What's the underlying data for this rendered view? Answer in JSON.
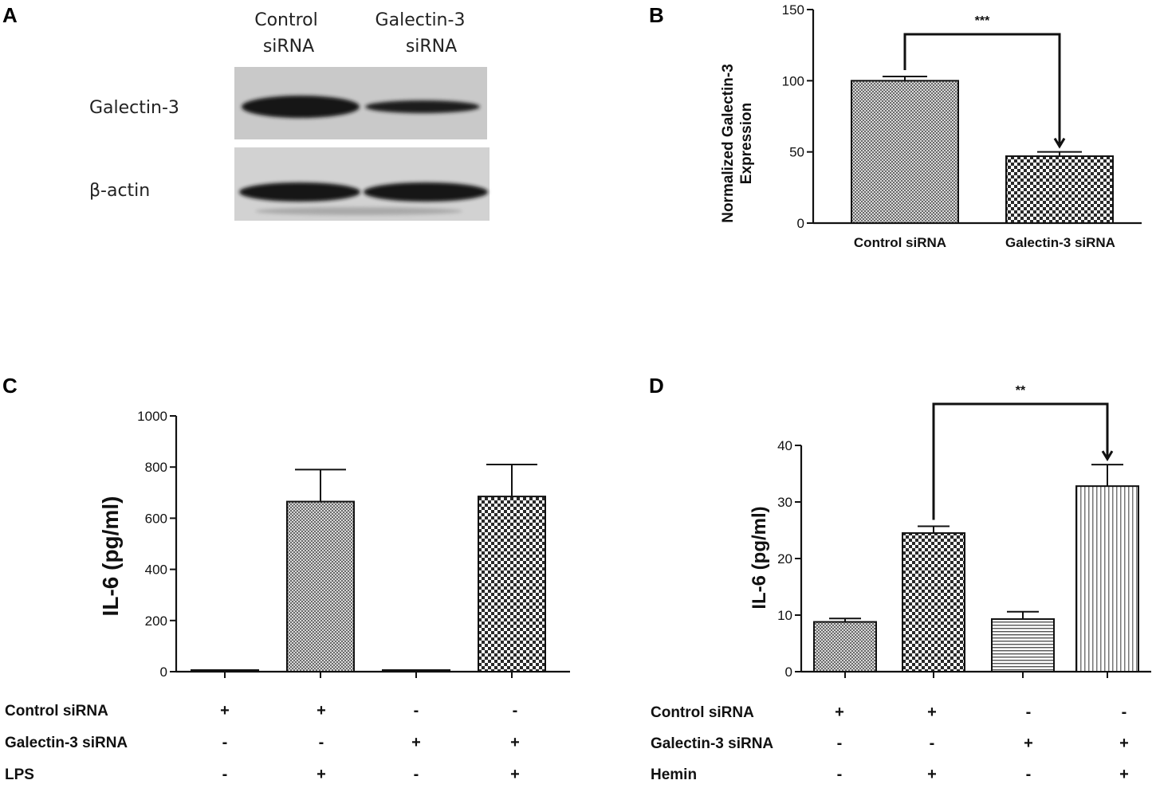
{
  "panels": {
    "a": "A",
    "b": "B",
    "c": "C",
    "d": "D"
  },
  "blot": {
    "lane_labels": [
      [
        "Control",
        "siRNA"
      ],
      [
        "Galectin-3",
        "siRNA"
      ]
    ],
    "row_labels": [
      "Galectin-3",
      "β-actin"
    ]
  },
  "chart_data": [
    {
      "id": "B",
      "type": "bar",
      "categories": [
        "Control siRNA",
        "Galectin-3 siRNA"
      ],
      "values": [
        100,
        47
      ],
      "errors": [
        3,
        3
      ],
      "ylabel": [
        "Normalized Galectin-3",
        "Expression"
      ],
      "ylim": [
        0,
        150
      ],
      "yticks": [
        0,
        50,
        100,
        150
      ],
      "significance": [
        {
          "from": 0,
          "to": 1,
          "label": "***"
        }
      ]
    },
    {
      "id": "C",
      "type": "bar",
      "categories": [
        "1",
        "2",
        "3",
        "4"
      ],
      "values": [
        5,
        665,
        5,
        685
      ],
      "errors": [
        0,
        125,
        0,
        125
      ],
      "ylabel": "IL-6 (pg/ml)",
      "ylim": [
        0,
        1000
      ],
      "yticks": [
        0,
        200,
        400,
        600,
        800,
        1000
      ],
      "conditions": [
        {
          "label": "Control siRNA",
          "signs": [
            "+",
            "+",
            "-",
            "-"
          ]
        },
        {
          "label": "Galectin-3 siRNA",
          "signs": [
            "-",
            "-",
            "+",
            "+"
          ]
        },
        {
          "label": "LPS",
          "signs": [
            "-",
            "+",
            "-",
            "+"
          ]
        }
      ]
    },
    {
      "id": "D",
      "type": "bar",
      "categories": [
        "1",
        "2",
        "3",
        "4"
      ],
      "values": [
        8.8,
        24.5,
        9.3,
        32.8
      ],
      "errors": [
        0.6,
        1.2,
        1.3,
        3.8
      ],
      "ylabel": "IL-6 (pg/ml)",
      "ylim": [
        0,
        40
      ],
      "yticks": [
        0,
        10,
        20,
        30,
        40
      ],
      "significance": [
        {
          "from": 1,
          "to": 3,
          "label": "**"
        }
      ],
      "conditions": [
        {
          "label": "Control siRNA",
          "signs": [
            "+",
            "+",
            "-",
            "-"
          ]
        },
        {
          "label": "Galectin-3 siRNA",
          "signs": [
            "-",
            "-",
            "+",
            "+"
          ]
        },
        {
          "label": "Hemin",
          "signs": [
            "-",
            "+",
            "-",
            "+"
          ]
        }
      ]
    }
  ]
}
